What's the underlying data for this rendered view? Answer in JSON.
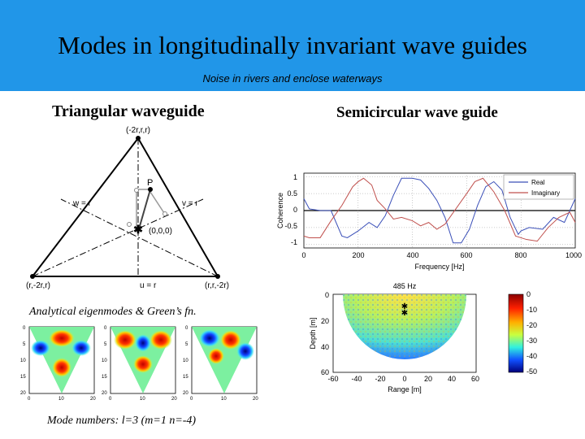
{
  "slide": {
    "title": "Modes in longitudinally invariant wave guides",
    "subtitle": "Noise in rivers and enclose waterways",
    "accent_color": "#2196e8"
  },
  "left": {
    "heading": "Triangular waveguide",
    "triangle": {
      "vertex_top": "(-2r,r,r)",
      "vertex_left": "(r,-2r,r)",
      "vertex_right": "(r,r,-2r)",
      "label_w": "w = r",
      "label_v": "v = r",
      "label_u": "u = r",
      "label_p": "P",
      "label_origin": "(0,0,0)"
    },
    "caption_eigen": "Analytical eigenmodes & Green’s fn.",
    "mode_plots": {
      "y_ticks": [
        "0",
        "5",
        "10",
        "15",
        "20"
      ],
      "x_ticks": [
        "0",
        "10",
        "20"
      ]
    },
    "caption_modes": "Mode numbers: l=3 (m=1 n=-4)"
  },
  "right": {
    "heading": "Semicircular wave guide",
    "coherence_chart": {
      "ylabel": "Coherence",
      "xlabel": "Frequency [Hz]",
      "y_ticks": [
        "1",
        "0.5",
        "0",
        "-0.5",
        "-1"
      ],
      "x_ticks": [
        "0",
        "200",
        "400",
        "600",
        "800",
        "1000"
      ],
      "legend": [
        "Real",
        "Imaginary"
      ]
    },
    "field_chart": {
      "title": "485 Hz",
      "ylabel": "Depth [m]",
      "xlabel": "Range [m]",
      "y_ticks": [
        "0",
        "20",
        "40",
        "60"
      ],
      "x_ticks": [
        "-60",
        "-40",
        "-20",
        "0",
        "20",
        "40",
        "60"
      ],
      "colorbar_ticks": [
        "0",
        "-10",
        "-20",
        "-30",
        "-40",
        "-50"
      ]
    }
  },
  "chart_data": [
    {
      "type": "line",
      "xlabel": "Frequency [Hz]",
      "ylabel": "Coherence",
      "xlim": [
        0,
        1000
      ],
      "ylim": [
        -1.1,
        1.1
      ],
      "grid": true,
      "legend_position": "top-right",
      "colors": {
        "Real": "#3a4fb8",
        "Imaginary": "#c0504d"
      },
      "series": [
        {
          "name": "Real",
          "x": [
            0,
            20,
            60,
            100,
            140,
            160,
            200,
            240,
            270,
            300,
            330,
            360,
            400,
            430,
            460,
            490,
            520,
            550,
            580,
            610,
            640,
            670,
            700,
            730,
            760,
            790,
            800,
            830,
            880,
            920,
            960,
            1000
          ],
          "y": [
            0.35,
            0.05,
            0.0,
            0.0,
            -0.75,
            -0.8,
            -0.6,
            -0.35,
            -0.5,
            -0.15,
            0.45,
            0.95,
            0.95,
            0.9,
            0.65,
            0.3,
            -0.2,
            -0.95,
            -0.95,
            -0.55,
            0.15,
            0.7,
            0.85,
            0.6,
            -0.2,
            -0.7,
            -0.6,
            -0.5,
            -0.55,
            -0.2,
            -0.35,
            0.35
          ]
        },
        {
          "name": "Imaginary",
          "x": [
            0,
            20,
            60,
            100,
            140,
            180,
            200,
            220,
            250,
            270,
            300,
            330,
            360,
            400,
            430,
            460,
            490,
            520,
            560,
            600,
            630,
            660,
            700,
            740,
            780,
            820,
            860,
            900,
            940,
            980,
            1000
          ],
          "y": [
            -0.75,
            -0.8,
            -0.8,
            -0.3,
            0.15,
            0.7,
            0.85,
            0.95,
            0.75,
            0.3,
            0.05,
            -0.25,
            -0.2,
            -0.3,
            -0.45,
            -0.35,
            -0.55,
            -0.4,
            0.05,
            0.5,
            0.85,
            0.95,
            0.55,
            0.0,
            -0.75,
            -0.85,
            -0.9,
            -0.5,
            -0.2,
            -0.05,
            -0.35
          ]
        }
      ]
    }
  ]
}
